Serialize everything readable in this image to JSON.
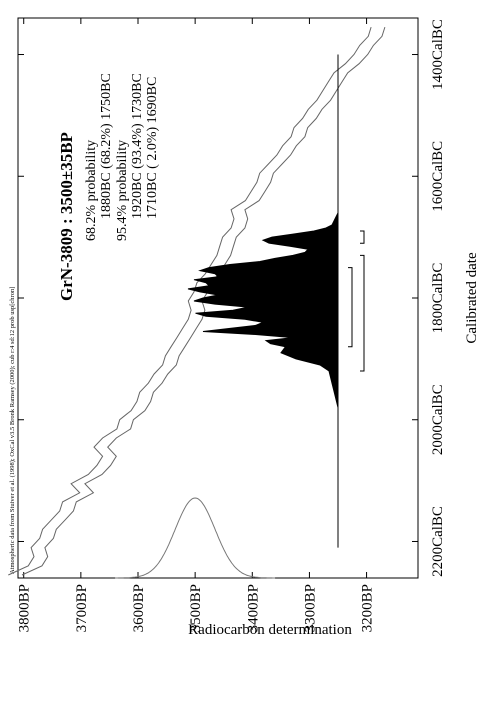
{
  "chart_data": {
    "type": "area",
    "header": "Atmospheric data from Stuiver et al. (1998); OxCal v3.5 Bronk Ramsey (2000); cub r:4 sd:12 prob usp[chron]",
    "title": "GrN-3809 : 3500±35BP",
    "xlabel": "Calibrated date",
    "ylabel": "Radiocarbon determination",
    "x_axis": {
      "ticks": [
        -2200,
        -2000,
        -1800,
        -1600,
        -1400
      ],
      "tick_labels": [
        "2200CalBC",
        "2000CalBC",
        "1800CalBC",
        "1600CalBC",
        "1400CalBC"
      ],
      "xlim": [
        -2260,
        -1340
      ]
    },
    "y_axis": {
      "ticks": [
        3800,
        3700,
        3600,
        3500,
        3400,
        3300,
        3200
      ],
      "tick_labels": [
        "3800BP",
        "3700BP",
        "3600BP",
        "3500BP",
        "3400BP",
        "3300BP",
        "3200BP"
      ],
      "ylim": [
        3110,
        3810
      ]
    },
    "annotations": [
      "68.2% probability",
      "1880BC (68.2%) 1750BC",
      "95.4% probability",
      "1920BC (93.4%) 1730BC",
      "1710BC ( 2.0%) 1690BC"
    ],
    "measurement": {
      "mean_bp": 3500,
      "sd_bp": 35
    },
    "calibration_curve": {
      "x": [
        -2255,
        -2240,
        -2225,
        -2210,
        -2195,
        -2180,
        -2165,
        -2150,
        -2135,
        -2120,
        -2105,
        -2090,
        -2075,
        -2060,
        -2045,
        -2030,
        -2015,
        -2000,
        -1985,
        -1970,
        -1955,
        -1940,
        -1925,
        -1910,
        -1895,
        -1880,
        -1865,
        -1850,
        -1835,
        -1820,
        -1805,
        -1790,
        -1775,
        -1760,
        -1745,
        -1730,
        -1715,
        -1700,
        -1685,
        -1670,
        -1655,
        -1640,
        -1625,
        -1610,
        -1595,
        -1580,
        -1565,
        -1550,
        -1535,
        -1520,
        -1505,
        -1490,
        -1475,
        -1460,
        -1445,
        -1430,
        -1415,
        -1400,
        -1385,
        -1370,
        -1355
      ],
      "y": [
        3815,
        3780,
        3770,
        3775,
        3760,
        3755,
        3740,
        3725,
        3720,
        3690,
        3705,
        3675,
        3660,
        3650,
        3665,
        3650,
        3625,
        3620,
        3600,
        3590,
        3585,
        3570,
        3560,
        3545,
        3540,
        3530,
        3520,
        3510,
        3500,
        3495,
        3500,
        3490,
        3485,
        3470,
        3460,
        3450,
        3445,
        3440,
        3425,
        3420,
        3425,
        3400,
        3390,
        3380,
        3375,
        3360,
        3345,
        3335,
        3320,
        3315,
        3300,
        3290,
        3275,
        3265,
        3255,
        3245,
        3225,
        3210,
        3200,
        3185,
        3180
      ],
      "band_bp": 12
    },
    "posterior": {
      "x": [
        -1980,
        -1960,
        -1950,
        -1940,
        -1930,
        -1920,
        -1910,
        -1900,
        -1890,
        -1880,
        -1875,
        -1870,
        -1865,
        -1860,
        -1855,
        -1850,
        -1845,
        -1840,
        -1835,
        -1830,
        -1825,
        -1820,
        -1815,
        -1810,
        -1805,
        -1800,
        -1795,
        -1790,
        -1785,
        -1780,
        -1775,
        -1770,
        -1765,
        -1760,
        -1755,
        -1750,
        -1745,
        -1740,
        -1735,
        -1730,
        -1725,
        -1720,
        -1715,
        -1710,
        -1705,
        -1700,
        -1695,
        -1690,
        -1685,
        -1680,
        -1670,
        -1660
      ],
      "density": [
        0.0,
        0.02,
        0.03,
        0.04,
        0.05,
        0.06,
        0.12,
        0.28,
        0.38,
        0.35,
        0.45,
        0.48,
        0.3,
        0.55,
        0.9,
        0.72,
        0.55,
        0.5,
        0.62,
        0.88,
        0.95,
        0.7,
        0.6,
        0.82,
        0.96,
        0.9,
        0.8,
        0.92,
        1.0,
        0.86,
        0.88,
        0.96,
        0.8,
        0.82,
        0.92,
        0.86,
        0.72,
        0.52,
        0.42,
        0.3,
        0.22,
        0.2,
        0.32,
        0.46,
        0.5,
        0.44,
        0.3,
        0.16,
        0.08,
        0.04,
        0.02,
        0.0
      ]
    },
    "ranges_68": [
      [
        -1880,
        -1750
      ]
    ],
    "ranges_95": [
      [
        -1920,
        -1730
      ],
      [
        -1710,
        -1690
      ]
    ]
  }
}
